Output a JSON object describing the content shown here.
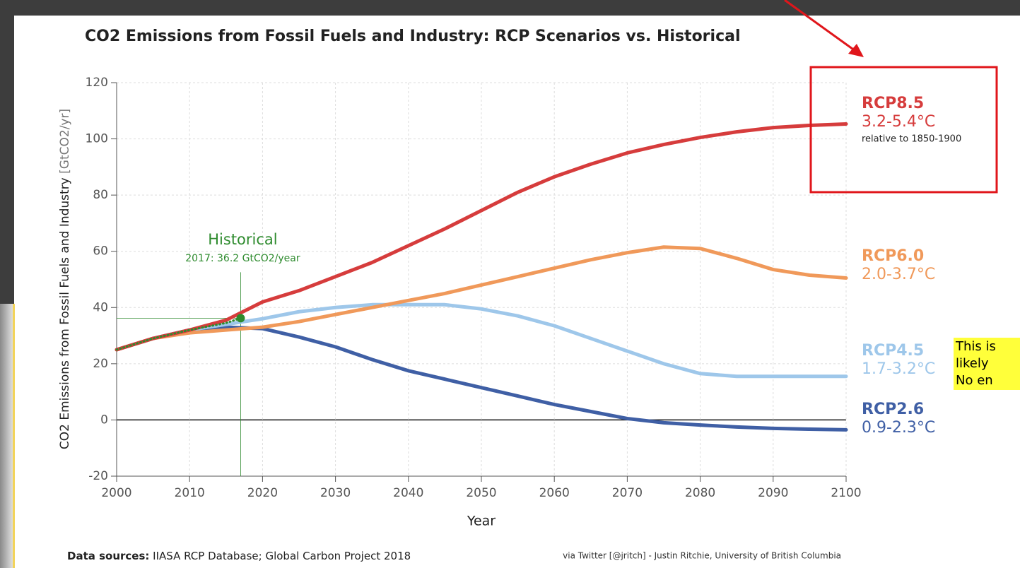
{
  "chart_data": {
    "type": "line",
    "title": "CO2 Emissions from Fossil Fuels and Industry: RCP Scenarios vs. Historical",
    "y_label": "CO2 Emissions from Fossil Fuels and Industry",
    "y_unit": "[GtCO2/yr]",
    "x_label": "Year",
    "x": [
      2000,
      2005,
      2010,
      2015,
      2020,
      2025,
      2030,
      2035,
      2040,
      2045,
      2050,
      2055,
      2060,
      2065,
      2070,
      2075,
      2080,
      2085,
      2090,
      2095,
      2100
    ],
    "series": [
      {
        "name": "RCP8.5",
        "range": "3.2-5.4°C",
        "note": "relative to 1850-1900",
        "color": "#d63c3c",
        "values": [
          25,
          29,
          32,
          35.5,
          42,
          46,
          51,
          56,
          62,
          68,
          74.5,
          81,
          86.5,
          91,
          95,
          98,
          100.5,
          102.5,
          104,
          104.8,
          105.3
        ]
      },
      {
        "name": "RCP6.0",
        "range": "2.0-3.7°C",
        "color": "#f0995a",
        "values": [
          25,
          29,
          31,
          32,
          33,
          35,
          37.5,
          40,
          42.5,
          45,
          48,
          51,
          54,
          57,
          59.5,
          61.5,
          61,
          57.5,
          53.5,
          51.5,
          50.5
        ]
      },
      {
        "name": "RCP4.5",
        "range": "1.7-3.2°C",
        "color": "#9ec7ea",
        "values": [
          25,
          29,
          32,
          34,
          36,
          38.5,
          40,
          41,
          41,
          41,
          39.5,
          37,
          33.5,
          29,
          24.5,
          20,
          16.5,
          15.5,
          15.5,
          15.5,
          15.5
        ]
      },
      {
        "name": "RCP2.6",
        "range": "0.9-2.3°C",
        "color": "#3f5fa5",
        "values": [
          25,
          29,
          32,
          33,
          32.5,
          29.5,
          26,
          21.5,
          17.5,
          14.5,
          11.5,
          8.5,
          5.5,
          3,
          0.5,
          -1,
          -1.8,
          -2.5,
          -3,
          -3.3,
          -3.5
        ]
      }
    ],
    "historical": {
      "name": "Historical",
      "annotation": "2017: 36.2 GtCO2/year",
      "color": "#2e8b2e",
      "x": [
        2000,
        2005,
        2010,
        2015,
        2017
      ],
      "values": [
        25,
        29,
        32,
        34.5,
        36.2
      ]
    },
    "xlim": [
      2000,
      2100
    ],
    "xticks": [
      2000,
      2010,
      2020,
      2030,
      2040,
      2050,
      2060,
      2070,
      2080,
      2090,
      2100
    ],
    "ylim": [
      -20,
      120
    ],
    "yticks": [
      -20,
      0,
      20,
      40,
      60,
      80,
      100,
      120
    ],
    "grid": true,
    "sources_label": "Data sources:",
    "sources": "IIASA RCP Database; Global Carbon Project 2018",
    "credit": "via Twitter [@jritch] - Justin Ritchie, University of British Columbia"
  },
  "overlay_note": [
    "This is",
    "likely",
    "No en"
  ]
}
